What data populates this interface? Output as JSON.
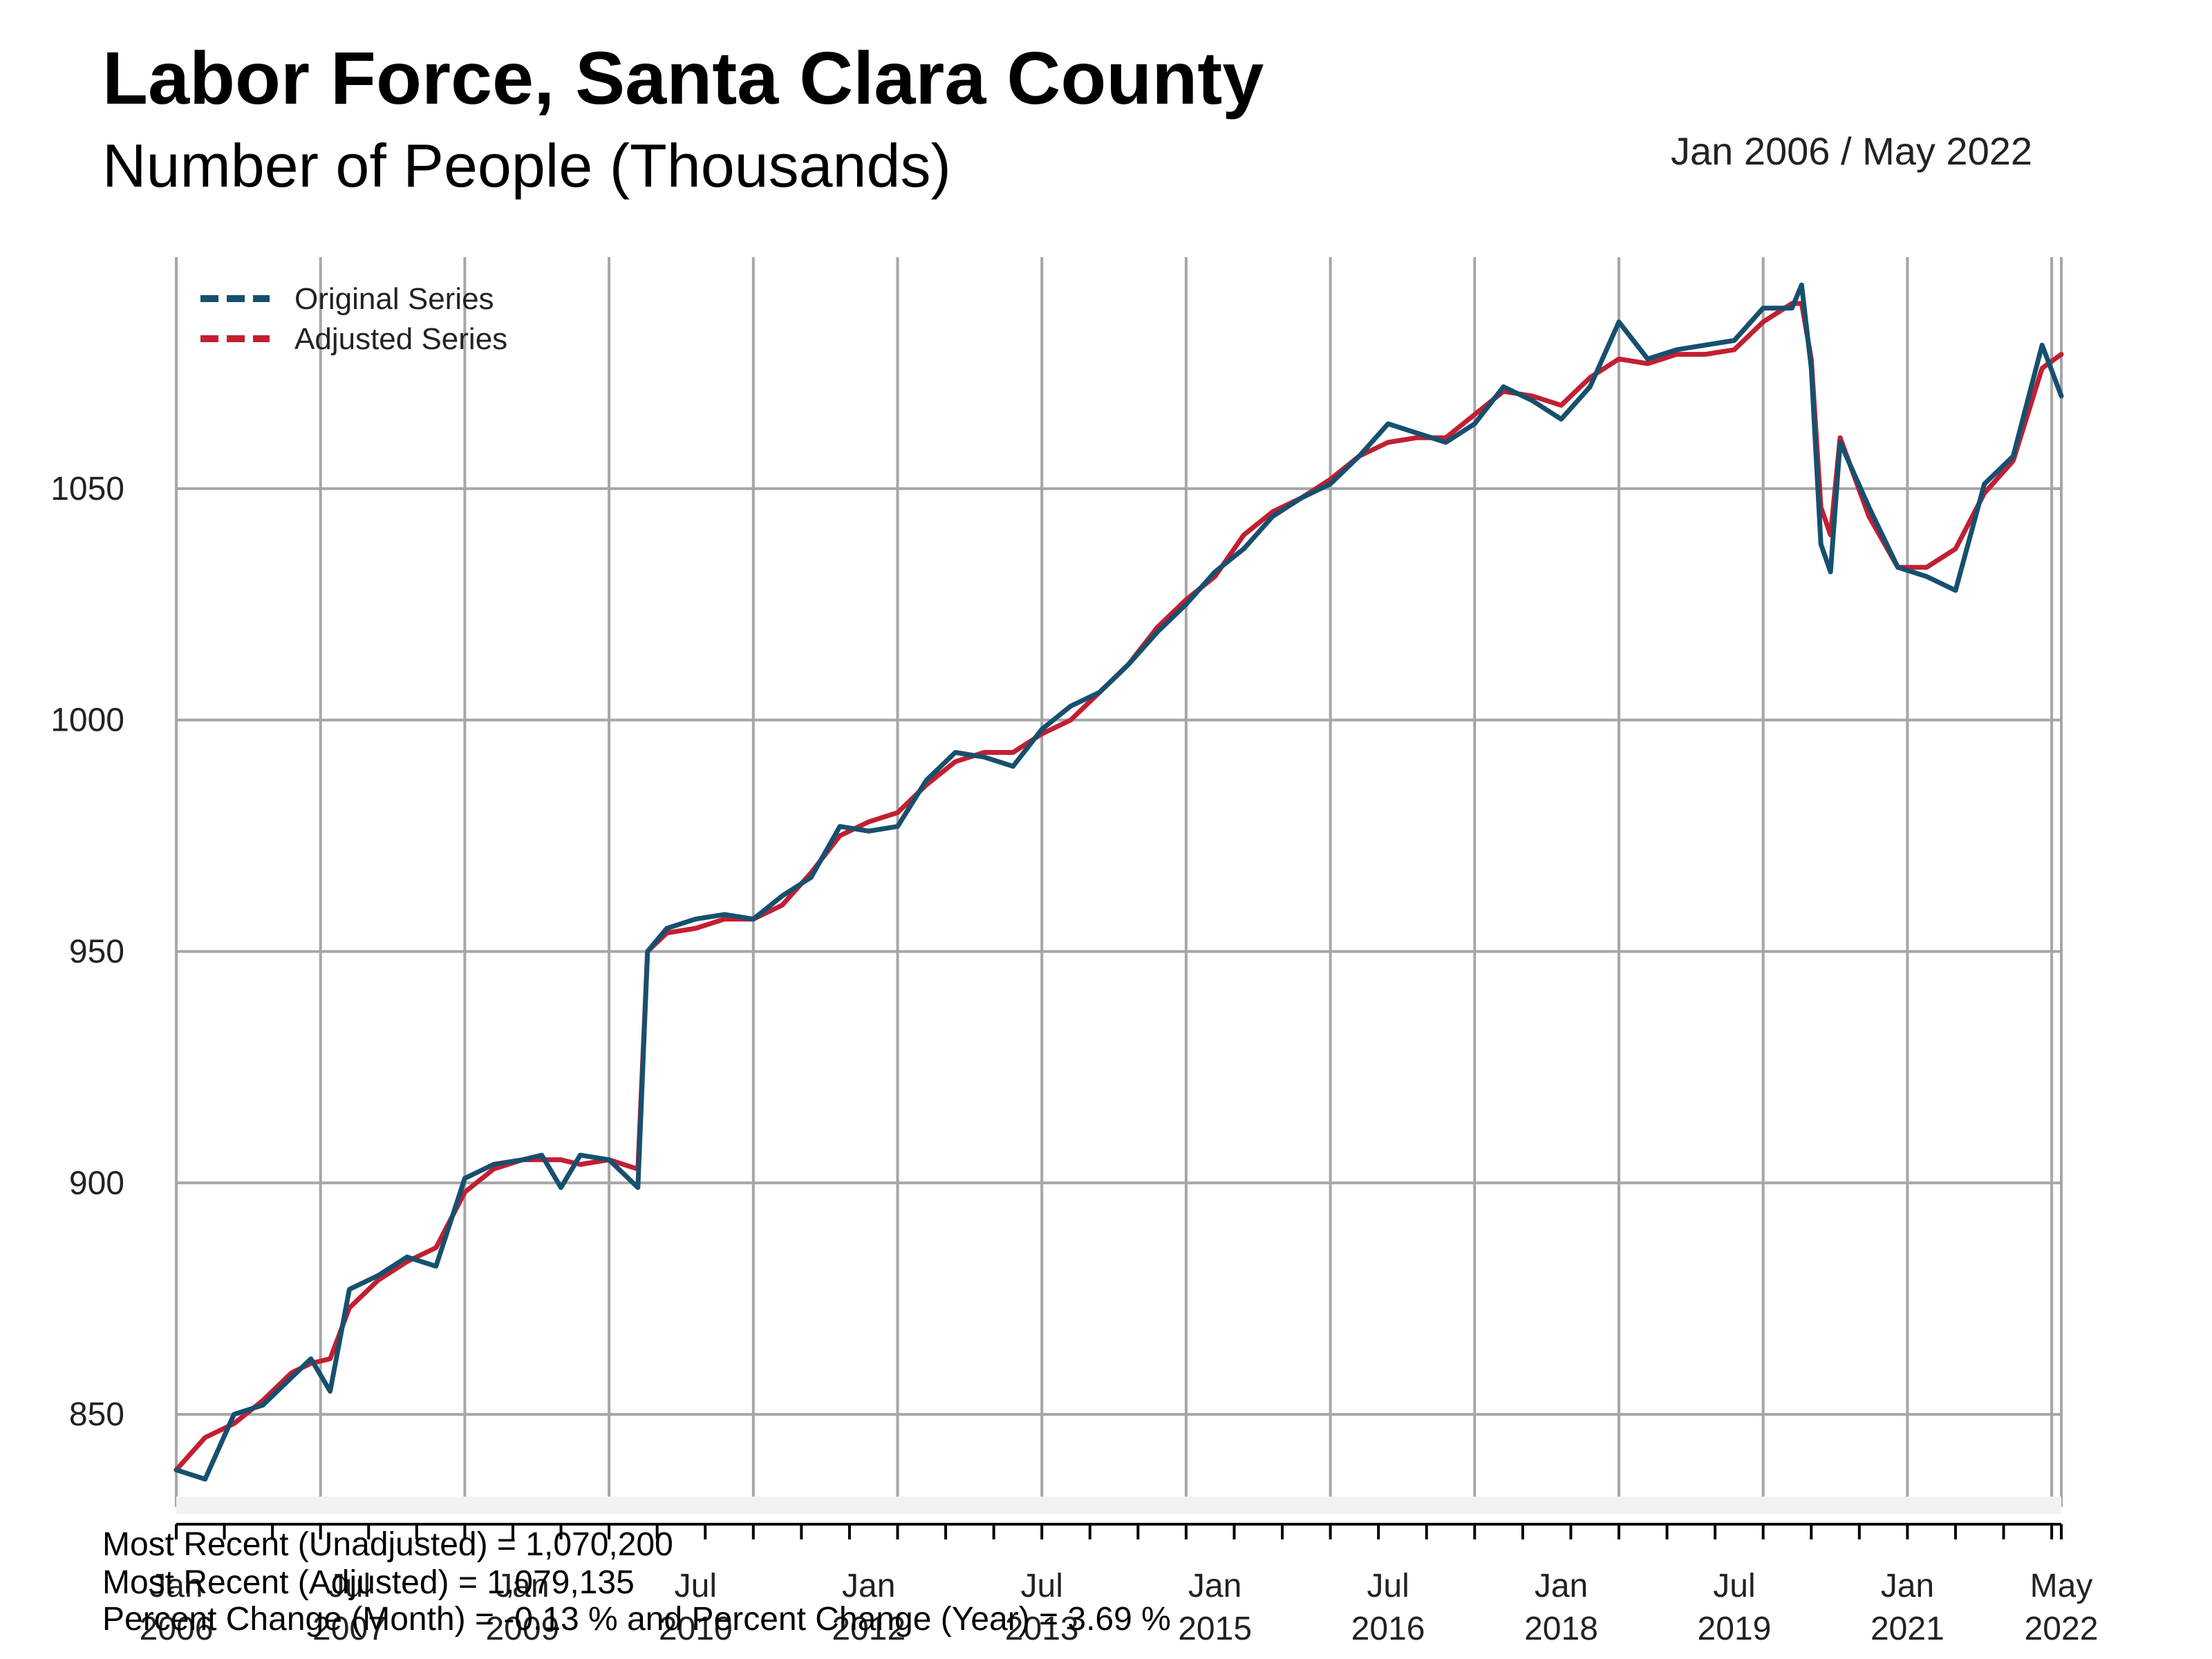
{
  "chart_data": {
    "type": "line",
    "title": "Labor Force, Santa Clara County",
    "subtitle": "Number of People (Thousands)",
    "date_range": "Jan 2006 / May 2022",
    "ylim": [
      830,
      1100
    ],
    "yticks": [
      850,
      900,
      950,
      1000,
      1050
    ],
    "xlim": [
      "2006-01",
      "2022-05"
    ],
    "grid": true,
    "legend_position": "top-left",
    "x_tick_labels": [
      {
        "month": "Jan",
        "year": "2006"
      },
      {
        "month": "Jul",
        "year": "2007"
      },
      {
        "month": "Jan",
        "year": "2009"
      },
      {
        "month": "Jul",
        "year": "2010"
      },
      {
        "month": "Jan",
        "year": "2012"
      },
      {
        "month": "Jul",
        "year": "2013"
      },
      {
        "month": "Jan",
        "year": "2015"
      },
      {
        "month": "Jul",
        "year": "2016"
      },
      {
        "month": "Jan",
        "year": "2018"
      },
      {
        "month": "Jul",
        "year": "2019"
      },
      {
        "month": "Jan",
        "year": "2021"
      },
      {
        "month": "May",
        "year": "2022"
      }
    ],
    "series": [
      {
        "name": "Original Series",
        "color": "#16506e",
        "points": [
          [
            "2006-01",
            838
          ],
          [
            "2006-04",
            836
          ],
          [
            "2006-07",
            850
          ],
          [
            "2006-10",
            852
          ],
          [
            "2007-01",
            858
          ],
          [
            "2007-03",
            862
          ],
          [
            "2007-05",
            855
          ],
          [
            "2007-07",
            877
          ],
          [
            "2007-10",
            880
          ],
          [
            "2008-01",
            884
          ],
          [
            "2008-04",
            882
          ],
          [
            "2008-07",
            901
          ],
          [
            "2008-10",
            904
          ],
          [
            "2009-01",
            905
          ],
          [
            "2009-03",
            906
          ],
          [
            "2009-05",
            899
          ],
          [
            "2009-07",
            906
          ],
          [
            "2009-10",
            905
          ],
          [
            "2010-01",
            899
          ],
          [
            "2010-02",
            950
          ],
          [
            "2010-04",
            955
          ],
          [
            "2010-07",
            957
          ],
          [
            "2010-10",
            958
          ],
          [
            "2011-01",
            957
          ],
          [
            "2011-04",
            962
          ],
          [
            "2011-07",
            966
          ],
          [
            "2011-10",
            977
          ],
          [
            "2012-01",
            976
          ],
          [
            "2012-04",
            977
          ],
          [
            "2012-07",
            987
          ],
          [
            "2012-10",
            993
          ],
          [
            "2013-01",
            992
          ],
          [
            "2013-04",
            990
          ],
          [
            "2013-07",
            998
          ],
          [
            "2013-10",
            1003
          ],
          [
            "2014-01",
            1006
          ],
          [
            "2014-04",
            1012
          ],
          [
            "2014-07",
            1019
          ],
          [
            "2014-10",
            1025
          ],
          [
            "2015-01",
            1032
          ],
          [
            "2015-04",
            1037
          ],
          [
            "2015-07",
            1044
          ],
          [
            "2015-10",
            1048
          ],
          [
            "2016-01",
            1051
          ],
          [
            "2016-04",
            1057
          ],
          [
            "2016-07",
            1064
          ],
          [
            "2016-10",
            1062
          ],
          [
            "2017-01",
            1060
          ],
          [
            "2017-04",
            1064
          ],
          [
            "2017-07",
            1072
          ],
          [
            "2017-10",
            1069
          ],
          [
            "2018-01",
            1065
          ],
          [
            "2018-04",
            1072
          ],
          [
            "2018-07",
            1086
          ],
          [
            "2018-10",
            1078
          ],
          [
            "2019-01",
            1080
          ],
          [
            "2019-04",
            1081
          ],
          [
            "2019-07",
            1082
          ],
          [
            "2019-10",
            1089
          ],
          [
            "2020-01",
            1089
          ],
          [
            "2020-02",
            1094
          ],
          [
            "2020-03",
            1076
          ],
          [
            "2020-04",
            1038
          ],
          [
            "2020-05",
            1032
          ],
          [
            "2020-06",
            1060
          ],
          [
            "2020-09",
            1046
          ],
          [
            "2020-12",
            1033
          ],
          [
            "2021-03",
            1031
          ],
          [
            "2021-06",
            1028
          ],
          [
            "2021-09",
            1051
          ],
          [
            "2021-12",
            1057
          ],
          [
            "2022-03",
            1081
          ],
          [
            "2022-05",
            1070
          ]
        ]
      },
      {
        "name": "Adjusted Series",
        "color": "#c21f32",
        "points": [
          [
            "2006-01",
            838
          ],
          [
            "2006-04",
            845
          ],
          [
            "2006-07",
            848
          ],
          [
            "2006-10",
            853
          ],
          [
            "2007-01",
            859
          ],
          [
            "2007-03",
            861
          ],
          [
            "2007-05",
            862
          ],
          [
            "2007-07",
            873
          ],
          [
            "2007-10",
            879
          ],
          [
            "2008-01",
            883
          ],
          [
            "2008-04",
            886
          ],
          [
            "2008-07",
            898
          ],
          [
            "2008-10",
            903
          ],
          [
            "2009-01",
            905
          ],
          [
            "2009-03",
            905
          ],
          [
            "2009-05",
            905
          ],
          [
            "2009-07",
            904
          ],
          [
            "2009-10",
            905
          ],
          [
            "2010-01",
            903
          ],
          [
            "2010-02",
            950
          ],
          [
            "2010-04",
            954
          ],
          [
            "2010-07",
            955
          ],
          [
            "2010-10",
            957
          ],
          [
            "2011-01",
            957
          ],
          [
            "2011-04",
            960
          ],
          [
            "2011-07",
            967
          ],
          [
            "2011-10",
            975
          ],
          [
            "2012-01",
            978
          ],
          [
            "2012-04",
            980
          ],
          [
            "2012-07",
            986
          ],
          [
            "2012-10",
            991
          ],
          [
            "2013-01",
            993
          ],
          [
            "2013-04",
            993
          ],
          [
            "2013-07",
            997
          ],
          [
            "2013-10",
            1000
          ],
          [
            "2014-01",
            1006
          ],
          [
            "2014-04",
            1012
          ],
          [
            "2014-07",
            1020
          ],
          [
            "2014-10",
            1026
          ],
          [
            "2015-01",
            1031
          ],
          [
            "2015-04",
            1040
          ],
          [
            "2015-07",
            1045
          ],
          [
            "2015-10",
            1048
          ],
          [
            "2016-01",
            1052
          ],
          [
            "2016-04",
            1057
          ],
          [
            "2016-07",
            1060
          ],
          [
            "2016-10",
            1061
          ],
          [
            "2017-01",
            1061
          ],
          [
            "2017-04",
            1066
          ],
          [
            "2017-07",
            1071
          ],
          [
            "2017-10",
            1070
          ],
          [
            "2018-01",
            1068
          ],
          [
            "2018-04",
            1074
          ],
          [
            "2018-07",
            1078
          ],
          [
            "2018-10",
            1077
          ],
          [
            "2019-01",
            1079
          ],
          [
            "2019-04",
            1079
          ],
          [
            "2019-07",
            1080
          ],
          [
            "2019-10",
            1086
          ],
          [
            "2020-01",
            1090
          ],
          [
            "2020-02",
            1090
          ],
          [
            "2020-03",
            1078
          ],
          [
            "2020-04",
            1046
          ],
          [
            "2020-05",
            1040
          ],
          [
            "2020-06",
            1061
          ],
          [
            "2020-09",
            1044
          ],
          [
            "2020-12",
            1033
          ],
          [
            "2021-03",
            1033
          ],
          [
            "2021-06",
            1037
          ],
          [
            "2021-09",
            1049
          ],
          [
            "2021-12",
            1056
          ],
          [
            "2022-03",
            1076
          ],
          [
            "2022-05",
            1079
          ]
        ]
      }
    ]
  },
  "footer": {
    "line1": "Most Recent (Unadjusted) = 1,070,200",
    "line2": "Most Recent (Adjusted) = 1,079,135",
    "line3": "Percent Change (Month) = -0.13 %  and  Percent Change (Year) = 3.69 %"
  }
}
